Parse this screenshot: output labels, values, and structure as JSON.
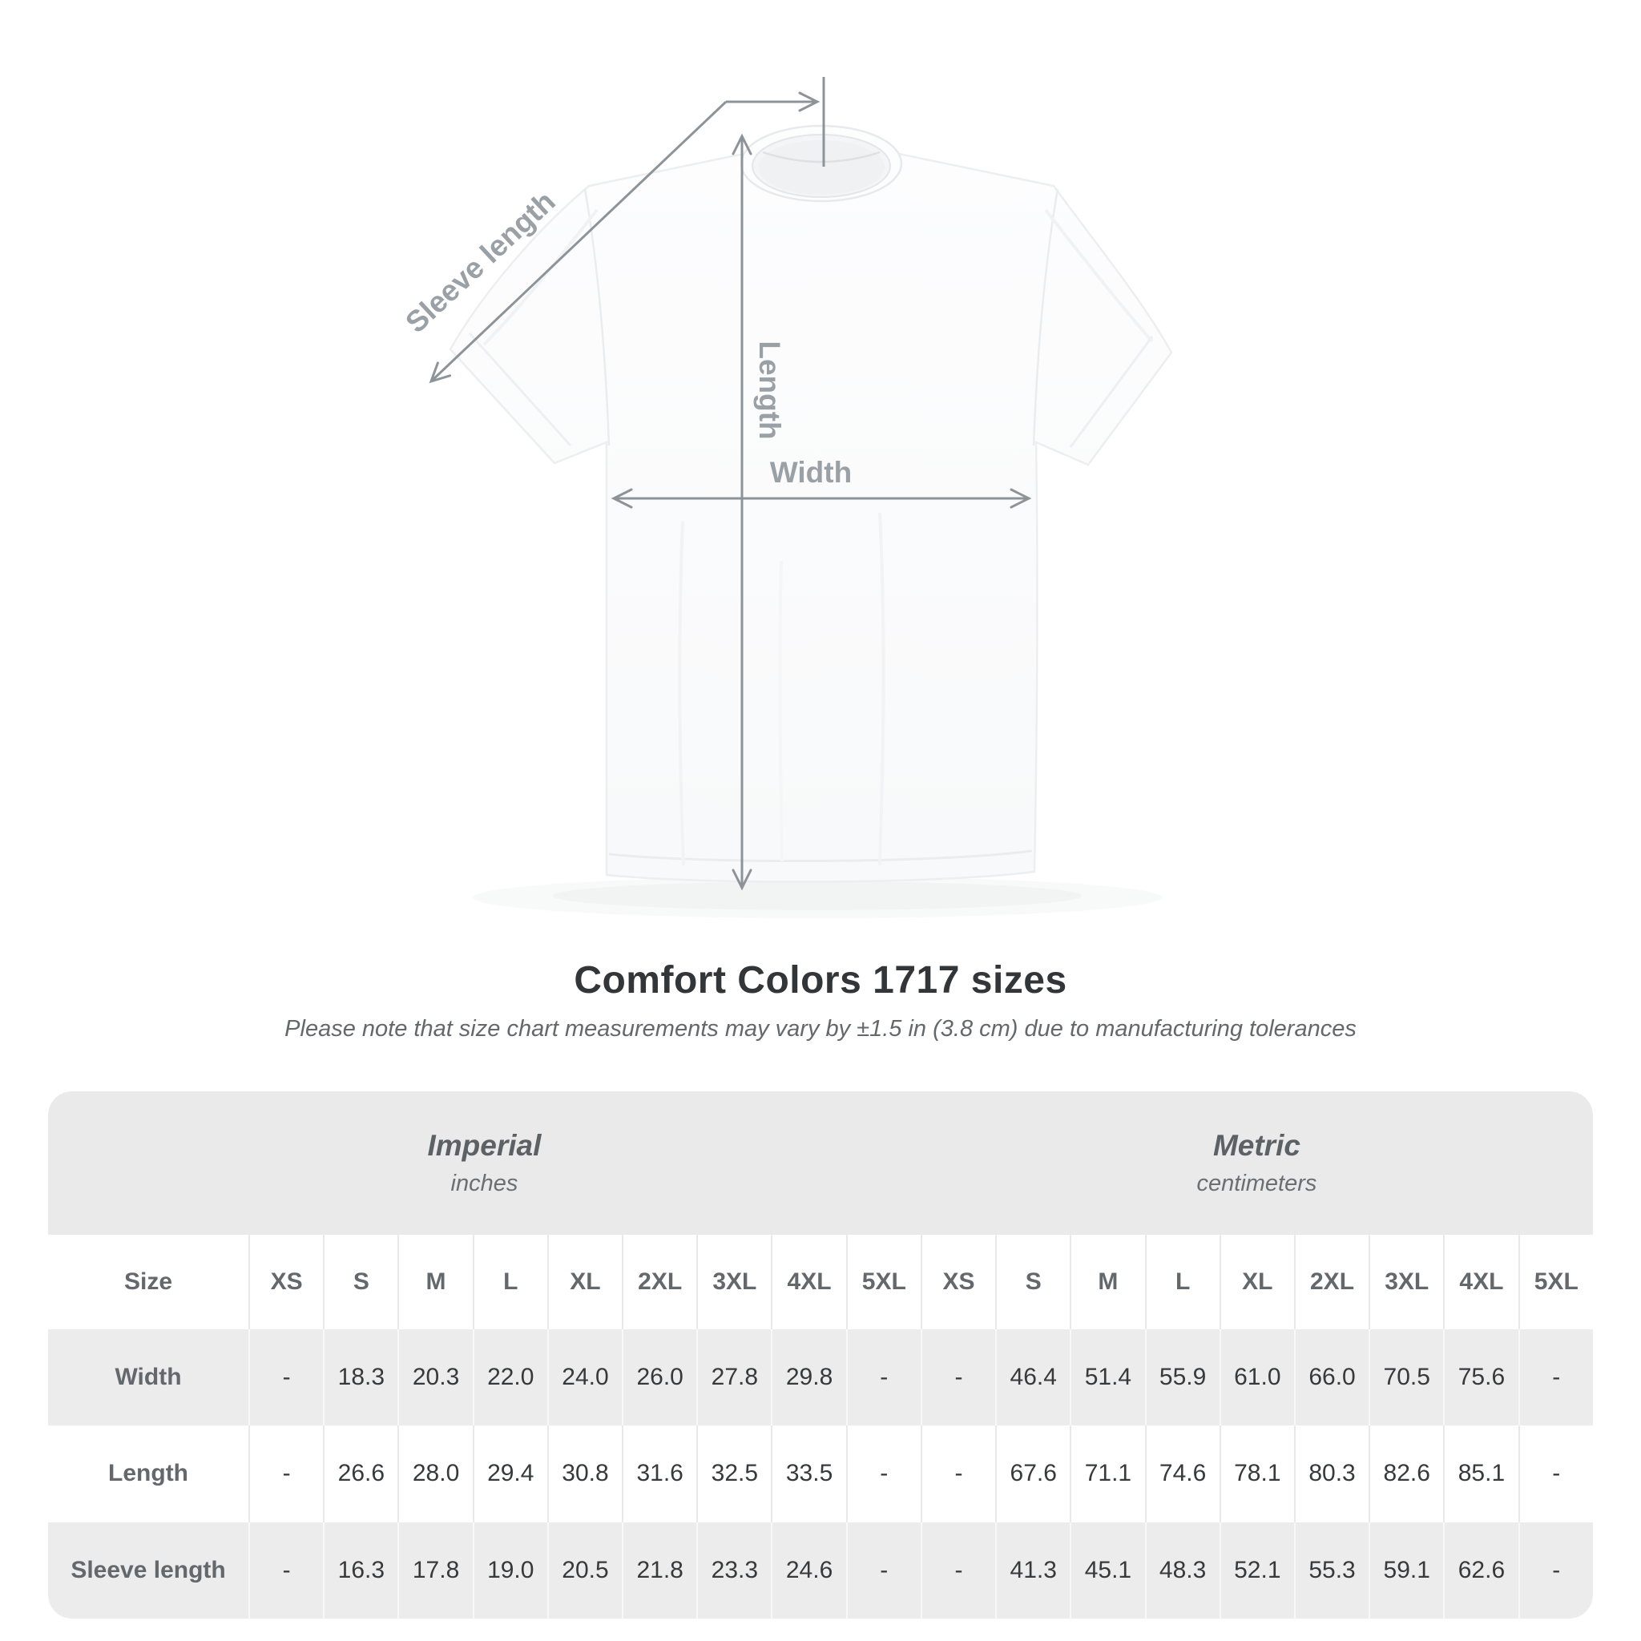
{
  "page": {
    "background": "#ffffff"
  },
  "diagram": {
    "labels": {
      "sleeve": "Sleeve length",
      "length": "Length",
      "width": "Width"
    },
    "line_color": "#8d9499",
    "label_color": "#9aa1a6"
  },
  "title": "Comfort Colors 1717 sizes",
  "subtitle": "Please note that size chart measurements may vary by ±1.5 in (3.8 cm) due to manufacturing tolerances",
  "chart_data": {
    "type": "table",
    "title": "Comfort Colors 1717 sizes",
    "size_header": "Size",
    "groups": [
      {
        "label": "Imperial",
        "sublabel": "inches"
      },
      {
        "label": "Metric",
        "sublabel": "centimeters"
      }
    ],
    "sizes": [
      "XS",
      "S",
      "M",
      "L",
      "XL",
      "2XL",
      "3XL",
      "4XL",
      "5XL"
    ],
    "rows": [
      {
        "label": "Width",
        "imperial": [
          "-",
          "18.3",
          "20.3",
          "22.0",
          "24.0",
          "26.0",
          "27.8",
          "29.8",
          "-"
        ],
        "metric": [
          "-",
          "46.4",
          "51.4",
          "55.9",
          "61.0",
          "66.0",
          "70.5",
          "75.6",
          "-"
        ]
      },
      {
        "label": "Length",
        "imperial": [
          "-",
          "26.6",
          "28.0",
          "29.4",
          "30.8",
          "31.6",
          "32.5",
          "33.5",
          "-"
        ],
        "metric": [
          "-",
          "67.6",
          "71.1",
          "74.6",
          "78.1",
          "80.3",
          "82.6",
          "85.1",
          "-"
        ]
      },
      {
        "label": "Sleeve length",
        "imperial": [
          "-",
          "16.3",
          "17.8",
          "19.0",
          "20.5",
          "21.8",
          "23.3",
          "24.6",
          "-"
        ],
        "metric": [
          "-",
          "41.3",
          "45.1",
          "48.3",
          "52.1",
          "55.3",
          "59.1",
          "62.6",
          "-"
        ]
      }
    ],
    "colors": {
      "band": "#eaeaea",
      "row_shade": "#ececec",
      "header_text": "#63686d",
      "value_text": "#37393b"
    }
  }
}
